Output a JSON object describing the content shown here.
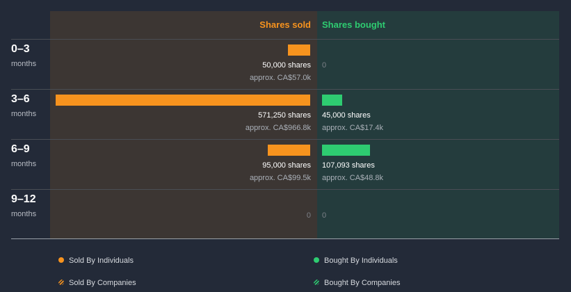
{
  "colors": {
    "sold": "#f7931e",
    "bought": "#2ecc71",
    "background": "#232a38",
    "sold_panel": "#3c3633",
    "bought_panel": "#243c3d"
  },
  "headers": {
    "sold": "Shares sold",
    "bought": "Shares bought"
  },
  "rows": [
    {
      "period": "0–3",
      "unit": "months",
      "sold_shares": "50,000 shares",
      "sold_value": "approx. CA$57.0k",
      "sold_zero": "",
      "bought_shares": "",
      "bought_value": "",
      "bought_zero": "0"
    },
    {
      "period": "3–6",
      "unit": "months",
      "sold_shares": "571,250 shares",
      "sold_value": "approx. CA$966.8k",
      "sold_zero": "",
      "bought_shares": "45,000 shares",
      "bought_value": "approx. CA$17.4k",
      "bought_zero": ""
    },
    {
      "period": "6–9",
      "unit": "months",
      "sold_shares": "95,000 shares",
      "sold_value": "approx. CA$99.5k",
      "sold_zero": "",
      "bought_shares": "107,093 shares",
      "bought_value": "approx. CA$48.8k",
      "bought_zero": ""
    },
    {
      "period": "9–12",
      "unit": "months",
      "sold_shares": "",
      "sold_value": "",
      "sold_zero": "0",
      "bought_shares": "",
      "bought_value": "",
      "bought_zero": "0"
    }
  ],
  "legend": {
    "sold_individuals": "Sold By Individuals",
    "sold_companies": "Sold By Companies",
    "bought_individuals": "Bought By Individuals",
    "bought_companies": "Bought By Companies"
  },
  "chart_data": {
    "type": "bar",
    "orientation": "horizontal-diverging",
    "categories": [
      "0–3 months",
      "3–6 months",
      "6–9 months",
      "9–12 months"
    ],
    "series": [
      {
        "name": "Shares sold",
        "values": [
          50000,
          571250,
          95000,
          0
        ]
      },
      {
        "name": "Shares bought",
        "values": [
          0,
          45000,
          107093,
          0
        ]
      }
    ],
    "approx_values": {
      "sold": [
        "approx. CA$57.0k",
        "approx. CA$966.8k",
        "approx. CA$99.5k",
        ""
      ],
      "bought": [
        "",
        "approx. CA$17.4k",
        "approx. CA$48.8k",
        ""
      ]
    },
    "legend": [
      "Sold By Individuals",
      "Sold By Companies",
      "Bought By Individuals",
      "Bought By Companies"
    ],
    "legend_position": "bottom",
    "grid": false
  }
}
